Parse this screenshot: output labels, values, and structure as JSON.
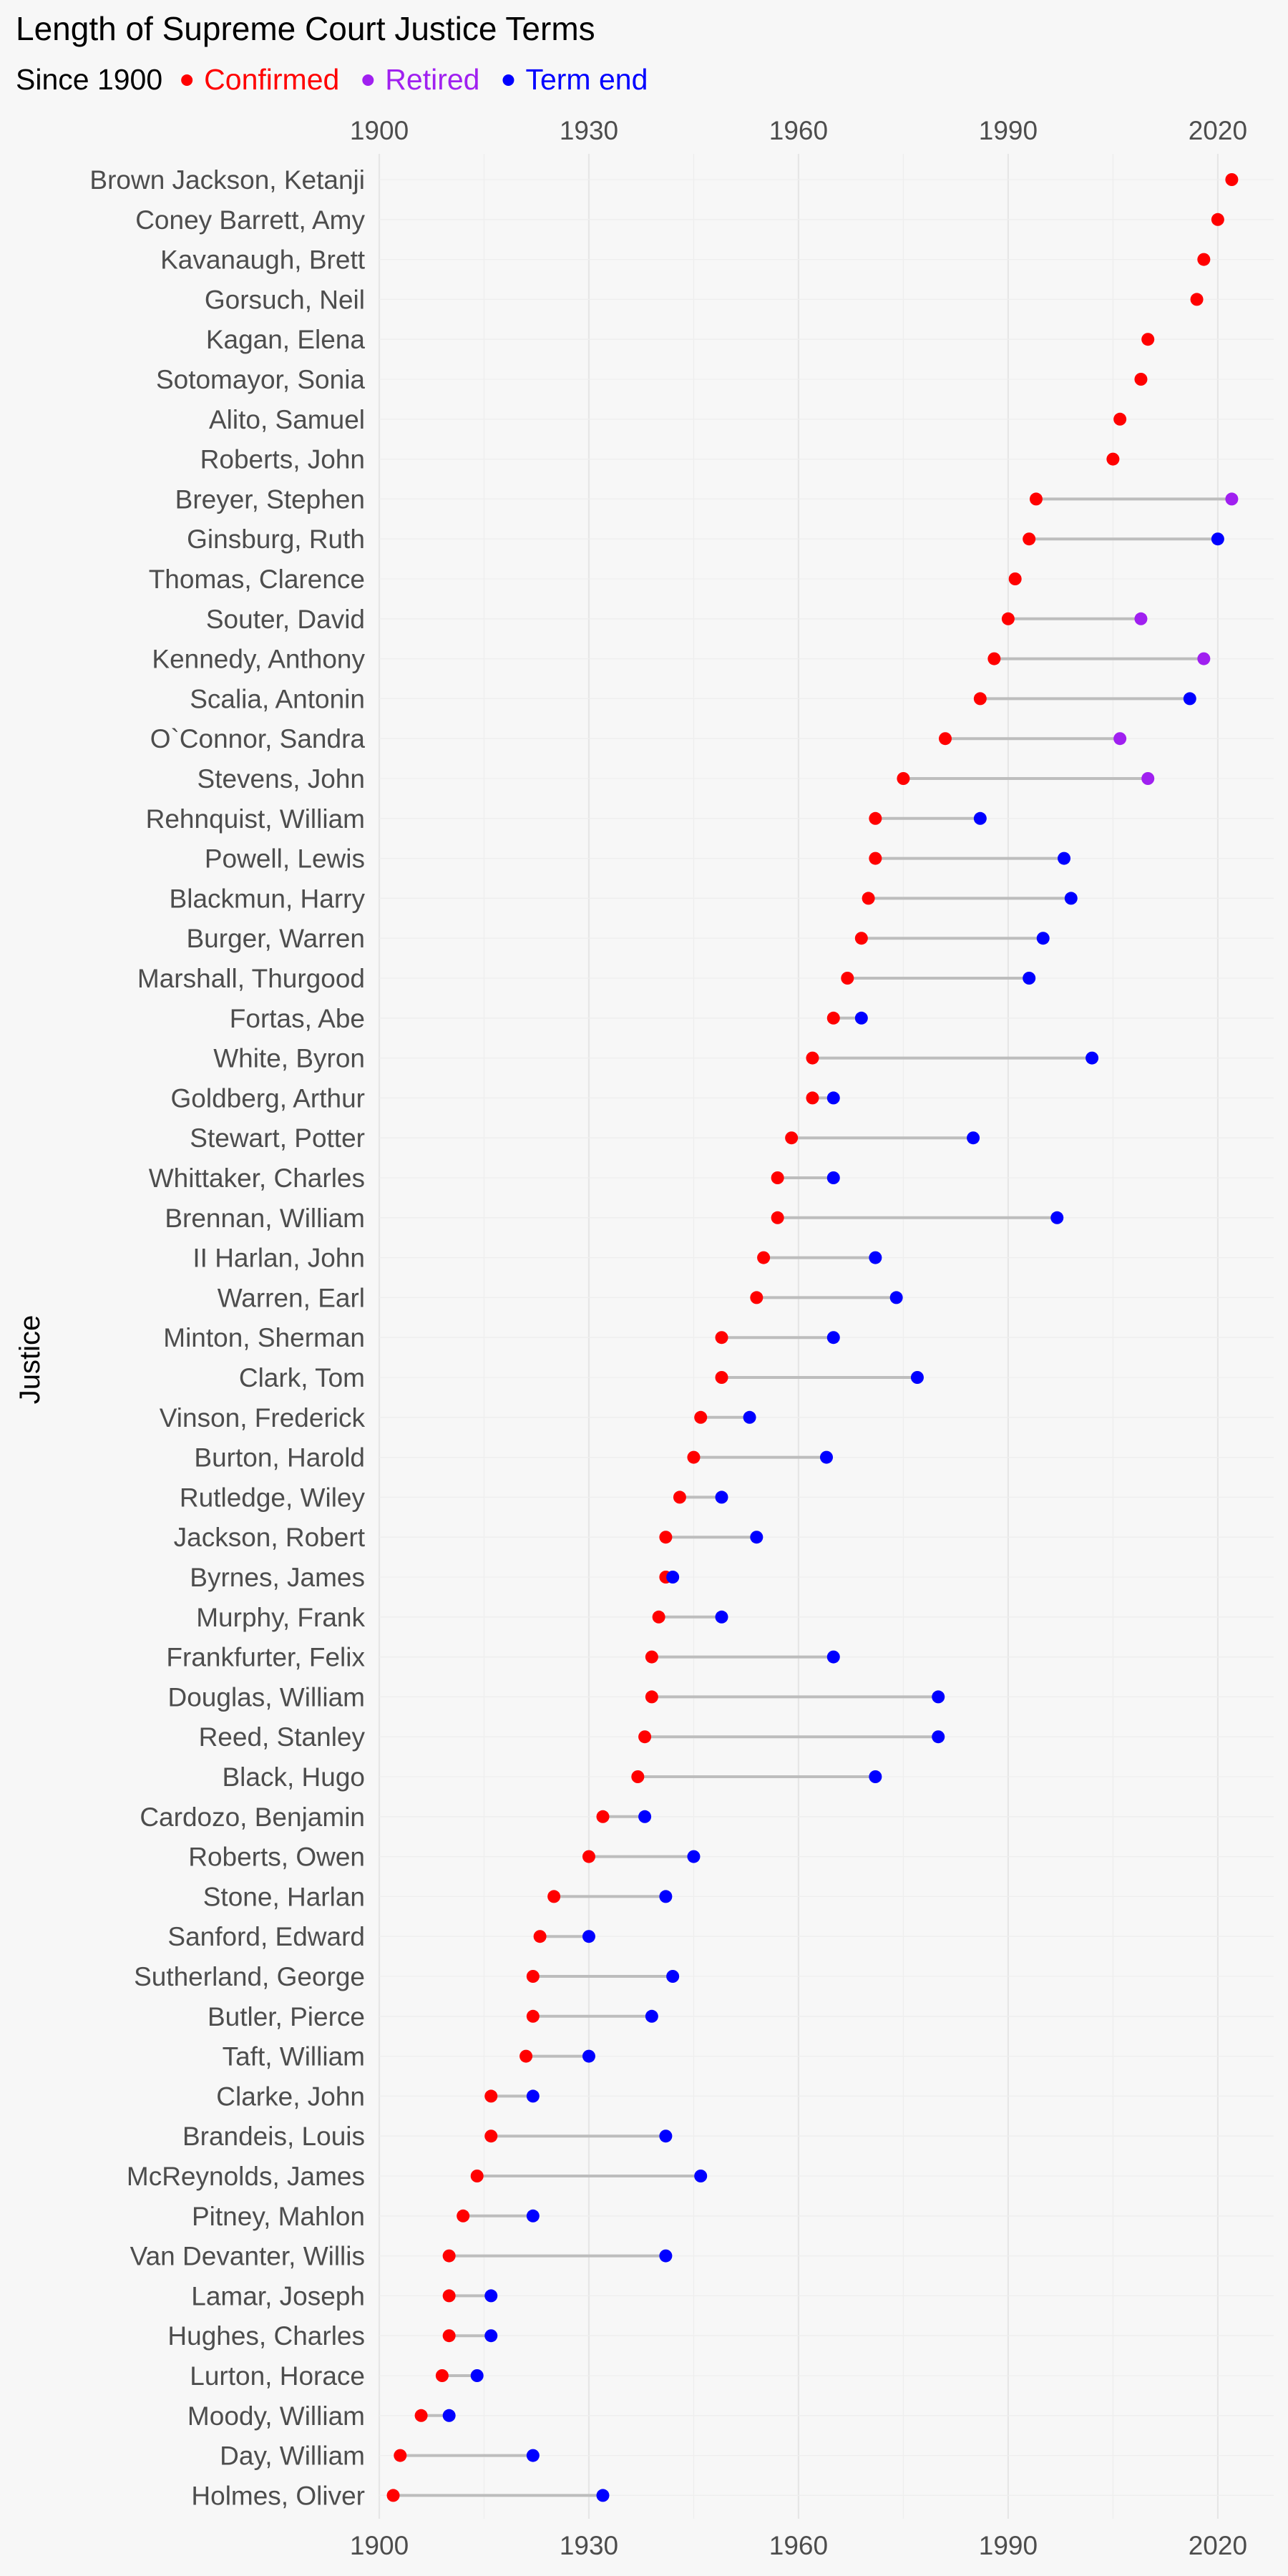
{
  "chart_data": {
    "type": "dumbbell",
    "title": "Length of Supreme Court Justice Terms",
    "subtitle": "Since 1900",
    "ylabel": "Justice",
    "xlabel": "",
    "xlim": [
      1900,
      2028
    ],
    "x_ticks": [
      1900,
      1930,
      1960,
      1990,
      2020
    ],
    "legend": [
      {
        "key": "confirmed",
        "label": "Confirmed",
        "color": "#ff0000"
      },
      {
        "key": "retired",
        "label": "Retired",
        "color": "#a020f0"
      },
      {
        "key": "term_end",
        "label": "Term end",
        "color": "#0000ff"
      }
    ],
    "legend_position": "top",
    "justices": [
      {
        "name": "Brown Jackson, Ketanji",
        "start": 2022,
        "end": null,
        "end_type": null
      },
      {
        "name": "Coney Barrett, Amy",
        "start": 2020,
        "end": null,
        "end_type": null
      },
      {
        "name": "Kavanaugh, Brett",
        "start": 2018,
        "end": null,
        "end_type": null
      },
      {
        "name": "Gorsuch, Neil",
        "start": 2017,
        "end": null,
        "end_type": null
      },
      {
        "name": "Kagan, Elena",
        "start": 2010,
        "end": null,
        "end_type": null
      },
      {
        "name": "Sotomayor, Sonia",
        "start": 2009,
        "end": null,
        "end_type": null
      },
      {
        "name": "Alito, Samuel",
        "start": 2006,
        "end": null,
        "end_type": null
      },
      {
        "name": "Roberts, John",
        "start": 2005,
        "end": null,
        "end_type": null
      },
      {
        "name": "Breyer, Stephen",
        "start": 1994,
        "end": 2022,
        "end_type": "retired"
      },
      {
        "name": "Ginsburg, Ruth",
        "start": 1993,
        "end": 2020,
        "end_type": "term_end"
      },
      {
        "name": "Thomas, Clarence",
        "start": 1991,
        "end": null,
        "end_type": null
      },
      {
        "name": "Souter, David",
        "start": 1990,
        "end": 2009,
        "end_type": "retired"
      },
      {
        "name": "Kennedy, Anthony",
        "start": 1988,
        "end": 2018,
        "end_type": "retired"
      },
      {
        "name": "Scalia, Antonin",
        "start": 1986,
        "end": 2016,
        "end_type": "term_end"
      },
      {
        "name": "O`Connor, Sandra",
        "start": 1981,
        "end": 2006,
        "end_type": "retired"
      },
      {
        "name": "Stevens, John",
        "start": 1975,
        "end": 2010,
        "end_type": "retired"
      },
      {
        "name": "Rehnquist, William",
        "start": 1971,
        "end": 1986,
        "end_type": "term_end"
      },
      {
        "name": "Powell, Lewis",
        "start": 1971,
        "end": 1998,
        "end_type": "term_end"
      },
      {
        "name": "Blackmun, Harry",
        "start": 1970,
        "end": 1999,
        "end_type": "term_end"
      },
      {
        "name": "Burger, Warren",
        "start": 1969,
        "end": 1995,
        "end_type": "term_end"
      },
      {
        "name": "Marshall, Thurgood",
        "start": 1967,
        "end": 1993,
        "end_type": "term_end"
      },
      {
        "name": "Fortas, Abe",
        "start": 1965,
        "end": 1969,
        "end_type": "term_end"
      },
      {
        "name": "White, Byron",
        "start": 1962,
        "end": 2002,
        "end_type": "term_end"
      },
      {
        "name": "Goldberg, Arthur",
        "start": 1962,
        "end": 1965,
        "end_type": "term_end"
      },
      {
        "name": "Stewart, Potter",
        "start": 1959,
        "end": 1985,
        "end_type": "term_end"
      },
      {
        "name": "Whittaker, Charles",
        "start": 1957,
        "end": 1965,
        "end_type": "term_end"
      },
      {
        "name": "Brennan, William",
        "start": 1957,
        "end": 1997,
        "end_type": "term_end"
      },
      {
        "name": "II Harlan, John",
        "start": 1955,
        "end": 1971,
        "end_type": "term_end"
      },
      {
        "name": "Warren, Earl",
        "start": 1954,
        "end": 1974,
        "end_type": "term_end"
      },
      {
        "name": "Minton, Sherman",
        "start": 1949,
        "end": 1965,
        "end_type": "term_end"
      },
      {
        "name": "Clark, Tom",
        "start": 1949,
        "end": 1977,
        "end_type": "term_end"
      },
      {
        "name": "Vinson, Frederick",
        "start": 1946,
        "end": 1953,
        "end_type": "term_end"
      },
      {
        "name": "Burton, Harold",
        "start": 1945,
        "end": 1964,
        "end_type": "term_end"
      },
      {
        "name": "Rutledge, Wiley",
        "start": 1943,
        "end": 1949,
        "end_type": "term_end"
      },
      {
        "name": "Jackson, Robert",
        "start": 1941,
        "end": 1954,
        "end_type": "term_end"
      },
      {
        "name": "Byrnes, James",
        "start": 1941,
        "end": 1942,
        "end_type": "term_end"
      },
      {
        "name": "Murphy, Frank",
        "start": 1940,
        "end": 1949,
        "end_type": "term_end"
      },
      {
        "name": "Frankfurter, Felix",
        "start": 1939,
        "end": 1965,
        "end_type": "term_end"
      },
      {
        "name": "Douglas, William",
        "start": 1939,
        "end": 1980,
        "end_type": "term_end"
      },
      {
        "name": "Reed, Stanley",
        "start": 1938,
        "end": 1980,
        "end_type": "term_end"
      },
      {
        "name": "Black, Hugo",
        "start": 1937,
        "end": 1971,
        "end_type": "term_end"
      },
      {
        "name": "Cardozo, Benjamin",
        "start": 1932,
        "end": 1938,
        "end_type": "term_end"
      },
      {
        "name": "Roberts, Owen",
        "start": 1930,
        "end": 1945,
        "end_type": "term_end"
      },
      {
        "name": "Stone, Harlan",
        "start": 1925,
        "end": 1941,
        "end_type": "term_end"
      },
      {
        "name": "Sanford, Edward",
        "start": 1923,
        "end": 1930,
        "end_type": "term_end"
      },
      {
        "name": "Sutherland, George",
        "start": 1922,
        "end": 1942,
        "end_type": "term_end"
      },
      {
        "name": "Butler, Pierce",
        "start": 1922,
        "end": 1939,
        "end_type": "term_end"
      },
      {
        "name": "Taft, William",
        "start": 1921,
        "end": 1930,
        "end_type": "term_end"
      },
      {
        "name": "Clarke, John",
        "start": 1916,
        "end": 1922,
        "end_type": "term_end"
      },
      {
        "name": "Brandeis, Louis",
        "start": 1916,
        "end": 1941,
        "end_type": "term_end"
      },
      {
        "name": "McReynolds, James",
        "start": 1914,
        "end": 1946,
        "end_type": "term_end"
      },
      {
        "name": "Pitney, Mahlon",
        "start": 1912,
        "end": 1922,
        "end_type": "term_end"
      },
      {
        "name": "Van Devanter, Willis",
        "start": 1910,
        "end": 1941,
        "end_type": "term_end"
      },
      {
        "name": "Lamar, Joseph",
        "start": 1910,
        "end": 1916,
        "end_type": "term_end"
      },
      {
        "name": "Hughes, Charles",
        "start": 1910,
        "end": 1916,
        "end_type": "term_end"
      },
      {
        "name": "Lurton, Horace",
        "start": 1909,
        "end": 1914,
        "end_type": "term_end"
      },
      {
        "name": "Moody, William",
        "start": 1906,
        "end": 1910,
        "end_type": "term_end"
      },
      {
        "name": "Day, William",
        "start": 1903,
        "end": 1922,
        "end_type": "term_end"
      },
      {
        "name": "Holmes, Oliver",
        "start": 1902,
        "end": 1932,
        "end_type": "term_end"
      }
    ]
  }
}
